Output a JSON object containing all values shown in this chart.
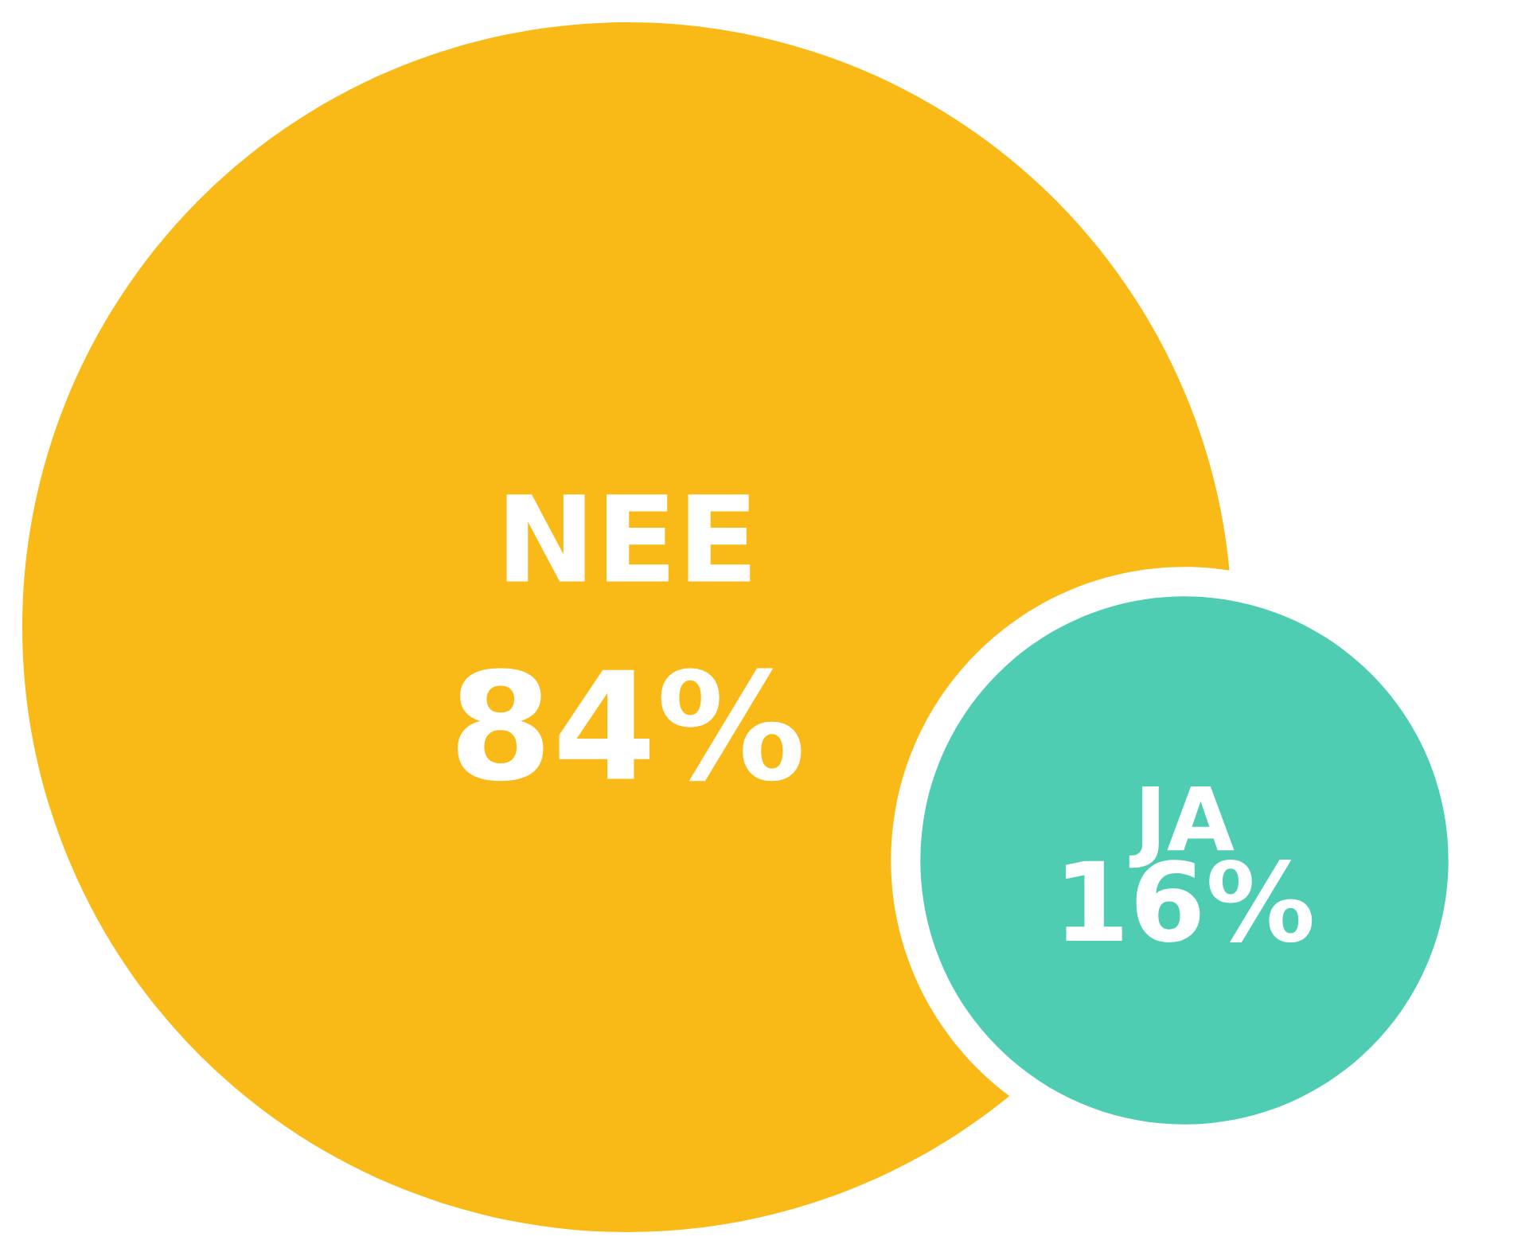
{
  "chart_data": {
    "type": "other",
    "categories": [
      "NEE",
      "JA"
    ],
    "values": [
      84,
      16
    ],
    "value_labels": [
      "84%",
      "16%"
    ],
    "colors": [
      "#f9b917",
      "#4ecdb3"
    ]
  }
}
